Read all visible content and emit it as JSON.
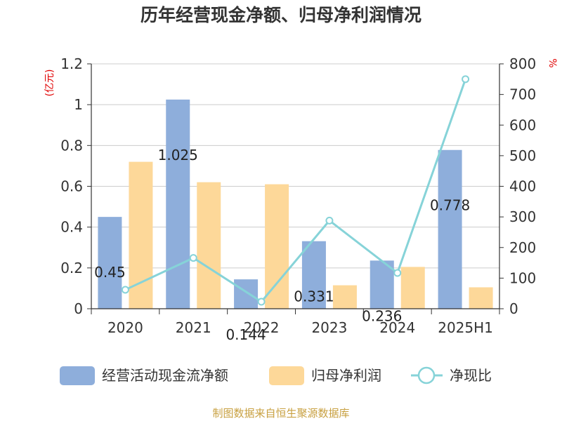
{
  "chart_data": {
    "type": "bar",
    "title": "历年经营现金净额、归母净利润情况",
    "categories": [
      "2020",
      "2021",
      "2022",
      "2023",
      "2024",
      "2025H1"
    ],
    "y_left": {
      "unit": "(亿元)",
      "ylim": [
        0,
        1.2
      ],
      "ticks": [
        "0",
        "0.2",
        "0.4",
        "0.6",
        "0.8",
        "1",
        "1.2"
      ]
    },
    "y_right": {
      "unit": "%",
      "ylim": [
        0,
        800
      ],
      "ticks": [
        "0",
        "100",
        "200",
        "300",
        "400",
        "500",
        "600",
        "700",
        "800"
      ]
    },
    "series": [
      {
        "name": "经营活动现金流净额",
        "type": "bar",
        "axis": "left",
        "color": "#8eaedb",
        "values": [
          0.45,
          1.025,
          0.144,
          0.331,
          0.236,
          0.778
        ],
        "labels": [
          "0.45",
          "1.025",
          "0.144",
          "0.331",
          "0.236",
          "0.778"
        ]
      },
      {
        "name": "归母净利润",
        "type": "bar",
        "axis": "left",
        "color": "#fdd899",
        "values": [
          0.72,
          0.62,
          0.61,
          0.115,
          0.205,
          0.105
        ]
      },
      {
        "name": "净现比",
        "type": "line",
        "axis": "right",
        "color": "#86d3d8",
        "values": [
          62,
          166,
          23,
          288,
          117,
          750
        ]
      }
    ],
    "grid": true,
    "legend_position": "bottom"
  },
  "source": "制图数据来自恒生聚源数据库"
}
